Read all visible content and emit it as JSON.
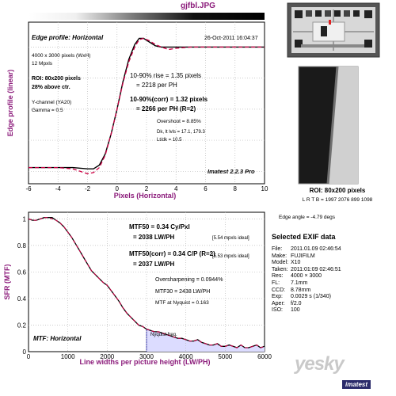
{
  "file_title": "gjfbl.JPG",
  "chart_data": [
    {
      "type": "line",
      "title": "Edge profile: Horizontal",
      "xlabel": "Pixels (Horizontal)",
      "ylabel": "Edge profile (linear)",
      "xlim": [
        -6,
        10
      ],
      "xticks": [
        "-6",
        "-4",
        "-2",
        "0",
        "2",
        "4",
        "6",
        "8",
        "10"
      ],
      "grid": true,
      "timestamp": "26-Oct-2011 16:04:37",
      "info": [
        "4000 x 3000 pixels (WxH)",
        "12 Mpxls",
        "ROI: 80x200 pixels",
        "28% above ctr.",
        "Y-channel  (YA20)",
        "Gamma = 0.5"
      ],
      "rise_line1": "10-90% rise = 1.35 pixels",
      "rise_line2": "= 2218 per PH",
      "corr_line1": "10-90%(corr) = 1.32 pixels",
      "corr_line2": "= 2266 per PH  (R=2)",
      "overshoot": "Overshoot = 8.85%",
      "dk_lt": "Dk, lt lvls = 17.1, 179.3",
      "lt_dk": "Lt/dk = 10.5",
      "version": "Imatest 2.2.3 Pro",
      "series": [
        {
          "color": "#000000",
          "style": "solid",
          "x": [
            -6,
            -5,
            -4,
            -3,
            -2,
            -1.6,
            -1.2,
            -0.8,
            -0.4,
            0,
            0.4,
            0.8,
            1.2,
            1.5,
            1.8,
            2.2,
            2.6,
            3,
            3.5,
            4,
            5,
            6,
            7,
            8,
            9,
            10
          ],
          "y": [
            0.03,
            0.03,
            0.03,
            0.03,
            0.02,
            0.02,
            0.05,
            0.14,
            0.3,
            0.5,
            0.72,
            0.9,
            1.02,
            1.07,
            1.07,
            1.04,
            1.01,
            1.0,
            1.0,
            1.0,
            1.0,
            1.0,
            1.0,
            1.0,
            1.0,
            1.0
          ]
        },
        {
          "color": "#cc0044",
          "style": "dashed",
          "x": [
            -6,
            -5,
            -4,
            -3,
            -2.5,
            -2,
            -1.6,
            -1.2,
            -0.8,
            -0.4,
            0,
            0.4,
            0.8,
            1.2,
            1.5,
            1.8,
            2.2,
            2.6,
            3,
            3.5,
            4,
            5,
            6,
            7,
            8,
            9,
            10
          ],
          "y": [
            0.03,
            0.03,
            0.03,
            0.02,
            0.0,
            -0.02,
            -0.01,
            0.03,
            0.13,
            0.3,
            0.5,
            0.71,
            0.88,
            1.0,
            1.06,
            1.07,
            1.05,
            1.02,
            1.0,
            0.98,
            0.99,
            1.0,
            1.0,
            1.0,
            1.0,
            1.0,
            1.0
          ]
        }
      ]
    },
    {
      "type": "line",
      "title": "MTF: Horizontal",
      "xlabel": "Line widths per picture height (LW/PH)",
      "ylabel": "SFR (MTF)",
      "xlim": [
        0,
        6000
      ],
      "ylim": [
        0,
        1.05
      ],
      "xticks": [
        "0",
        "1000",
        "2000",
        "3000",
        "4000",
        "5000",
        "6000"
      ],
      "yticks": [
        "0",
        "0.2",
        "0.4",
        "0.6",
        "0.8",
        "1"
      ],
      "grid": true,
      "mtf50_line1": "MTF50 = 0.34 Cy/Pxl",
      "mtf50_line2": "= 2038 LW/PH",
      "mtf50_ideal": "[5.54 mpxls ideal]",
      "mtf50c_line1": "MTF50(corr) = 0.34 C/P  (R=2)",
      "mtf50c_line2": "= 2037 LW/PH",
      "mtf50c_ideal": "[5.53 mpxls ideal]",
      "oversharpening": "Oversharpening = 0.0944%",
      "mtf30": "MTF30 = 2438 LW/PH",
      "nyquist_value": "MTF at Nyquist = 0.163",
      "nyquist_label": "Nyquist freq.",
      "nyquist_x": 3000,
      "series": [
        {
          "color": "#000000",
          "style": "solid",
          "x": [
            0,
            100,
            200,
            300,
            400,
            500,
            600,
            700,
            800,
            900,
            1000,
            1100,
            1200,
            1300,
            1400,
            1500,
            1600,
            1700,
            1800,
            1900,
            2000,
            2100,
            2200,
            2300,
            2400,
            2500,
            2600,
            2700,
            2800,
            2900,
            3000,
            3100,
            3200,
            3300,
            3400,
            3500,
            3600,
            3700,
            3800,
            3900,
            4000,
            4100,
            4200,
            4300,
            4400,
            4500,
            4600,
            4700,
            4800,
            4900,
            5000,
            5100,
            5200,
            5300,
            5400,
            5500,
            5600,
            5700,
            5800,
            5900,
            6000
          ],
          "y": [
            1.0,
            0.99,
            0.99,
            1.0,
            1.01,
            1.01,
            1.01,
            0.99,
            0.97,
            0.94,
            0.9,
            0.86,
            0.81,
            0.76,
            0.71,
            0.66,
            0.61,
            0.58,
            0.55,
            0.52,
            0.5,
            0.46,
            0.42,
            0.38,
            0.33,
            0.29,
            0.26,
            0.23,
            0.2,
            0.19,
            0.17,
            0.16,
            0.15,
            0.15,
            0.14,
            0.13,
            0.12,
            0.11,
            0.1,
            0.1,
            0.09,
            0.08,
            0.08,
            0.09,
            0.07,
            0.06,
            0.05,
            0.05,
            0.06,
            0.04,
            0.04,
            0.05,
            0.04,
            0.03,
            0.05,
            0.03,
            0.03,
            0.04,
            0.05,
            0.03,
            0.04
          ]
        },
        {
          "color": "#cc0044",
          "style": "dashed",
          "x": [
            0,
            100,
            200,
            300,
            400,
            500,
            600,
            700,
            800,
            900,
            1000,
            1100,
            1200,
            1300,
            1400,
            1500,
            1600,
            1700,
            1800,
            1900,
            2000,
            2100,
            2200,
            2300,
            2400,
            2500,
            2600,
            2700,
            2800,
            2900,
            3000,
            3100,
            3200,
            3300,
            3400,
            3500,
            3600,
            3700,
            3800,
            3900,
            4000,
            4100,
            4200,
            4300,
            4400,
            4500,
            4600,
            4700,
            4800,
            4900,
            5000,
            5100,
            5200,
            5300,
            5400,
            5500,
            5600,
            5700,
            5800,
            5900,
            6000
          ],
          "y": [
            1.0,
            0.99,
            0.99,
            1.0,
            1.01,
            1.01,
            1.0,
            0.99,
            0.97,
            0.94,
            0.9,
            0.86,
            0.81,
            0.76,
            0.71,
            0.66,
            0.61,
            0.58,
            0.55,
            0.52,
            0.5,
            0.46,
            0.42,
            0.38,
            0.33,
            0.29,
            0.26,
            0.23,
            0.2,
            0.19,
            0.17,
            0.16,
            0.15,
            0.15,
            0.14,
            0.13,
            0.12,
            0.11,
            0.1,
            0.1,
            0.09,
            0.08,
            0.08,
            0.09,
            0.07,
            0.06,
            0.05,
            0.05,
            0.06,
            0.04,
            0.04,
            0.05,
            0.04,
            0.03,
            0.05,
            0.03,
            0.03,
            0.04,
            0.05,
            0.03,
            0.04
          ]
        }
      ]
    }
  ],
  "roi": {
    "title": "ROI: 80x200 pixels",
    "lrtb": "L R T B = 1997 2076  899 1098",
    "edge_angle": "Edge angle = -4.79 degs"
  },
  "exif": {
    "title": "Selected EXIF data",
    "rows": [
      {
        "k": "File:",
        "v": "2011.01.09 02:46:54"
      },
      {
        "k": "Make:",
        "v": "FUJIFILM"
      },
      {
        "k": "Model:",
        "v": "X10"
      },
      {
        "k": "Taken:",
        "v": "2011:01:09 02:46:51"
      },
      {
        "k": "Res:",
        "v": "4000 × 3000"
      },
      {
        "k": "FL:",
        "v": "7.1mm"
      },
      {
        "k": "CCD:",
        "v": "8.78mm"
      },
      {
        "k": "Exp:",
        "v": "0.0029 s  (1/340)"
      },
      {
        "k": "Aper:",
        "v": "f/2.0"
      },
      {
        "k": "ISO:",
        "v": "100"
      }
    ]
  },
  "watermark": "yesky",
  "logo": "imatest"
}
